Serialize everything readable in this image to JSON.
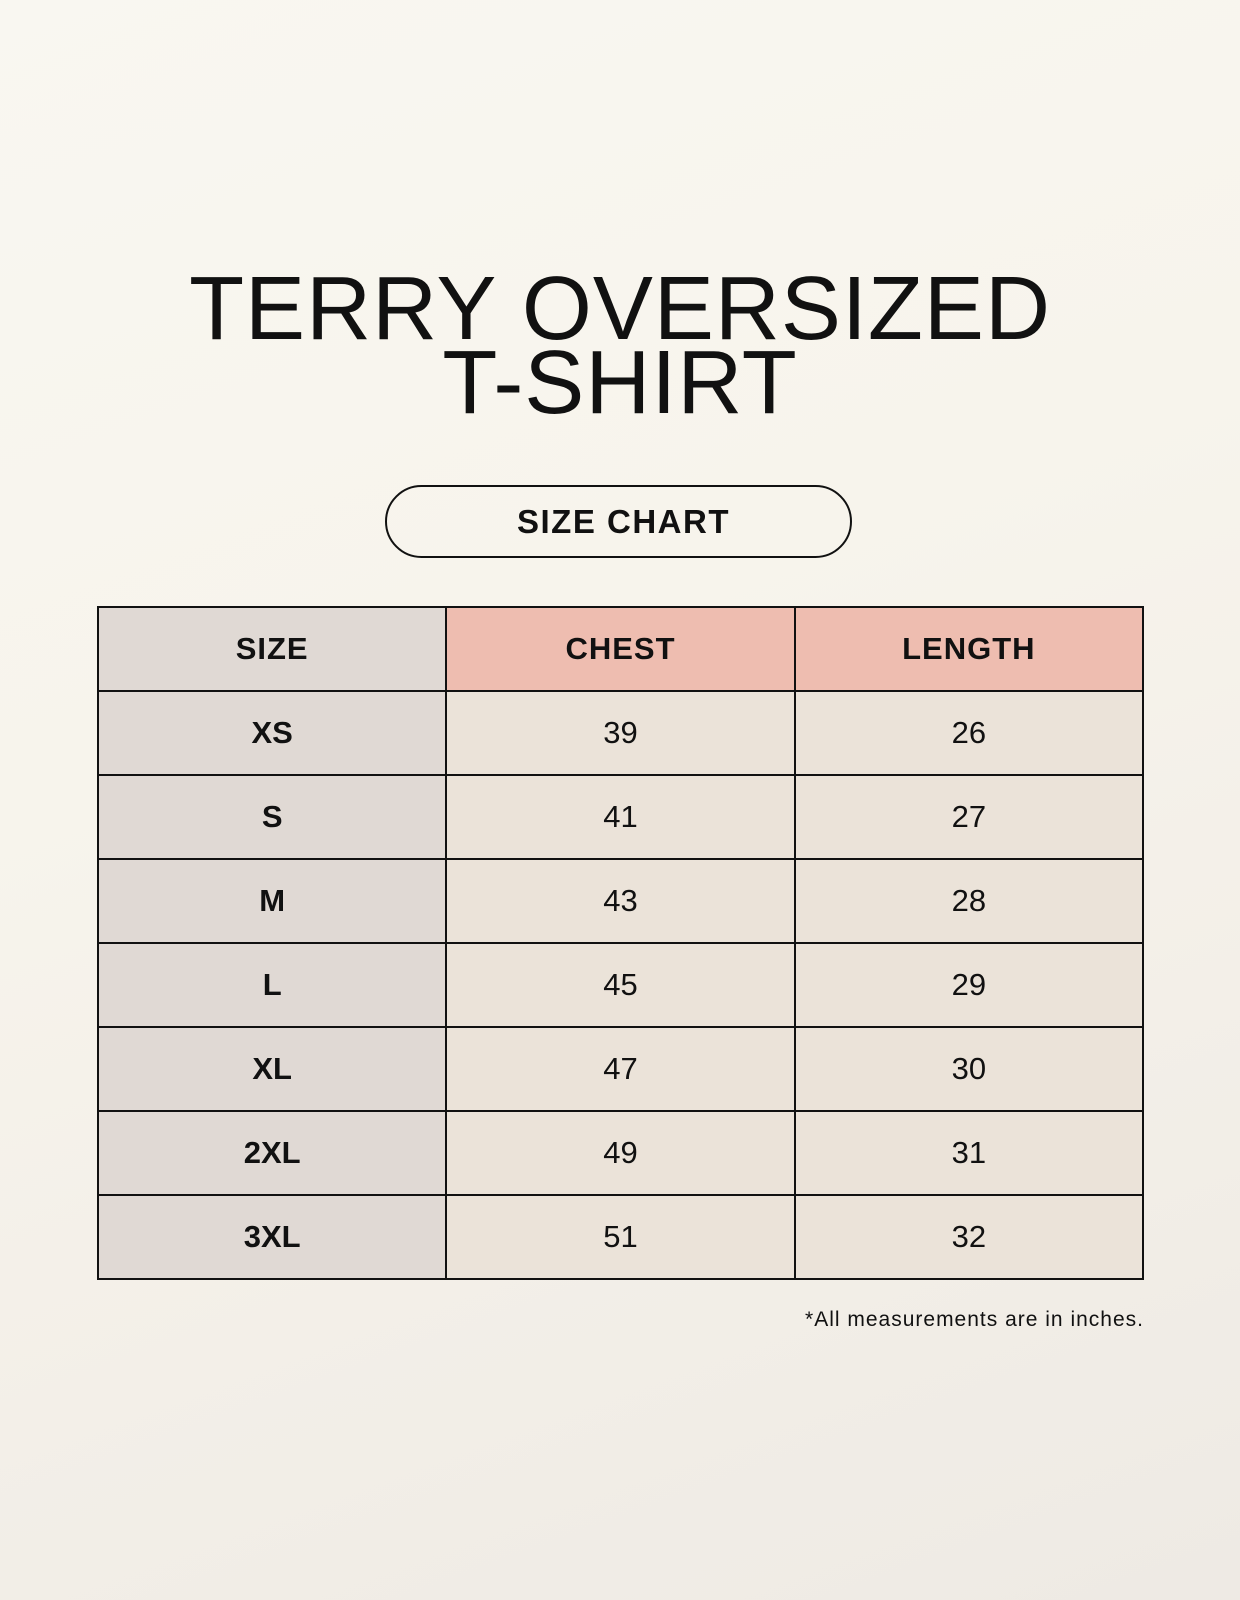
{
  "title": {
    "line1": "TERRY OVERSIZED",
    "line2": "T-SHIRT"
  },
  "badge": "SIZE CHART",
  "table": {
    "headers": [
      "SIZE",
      "CHEST",
      "LENGTH"
    ],
    "rows": [
      [
        "XS",
        "39",
        "26"
      ],
      [
        "S",
        "41",
        "27"
      ],
      [
        "M",
        "43",
        "28"
      ],
      [
        "L",
        "45",
        "29"
      ],
      [
        "XL",
        "47",
        "30"
      ],
      [
        "2XL",
        "49",
        "31"
      ],
      [
        "3XL",
        "51",
        "32"
      ]
    ]
  },
  "note": "*All measurements are in inches.",
  "colors": {
    "size_column": "#e0d9d4",
    "header_accent": "#eebdb0",
    "value_cells": "#ebe3d9"
  }
}
